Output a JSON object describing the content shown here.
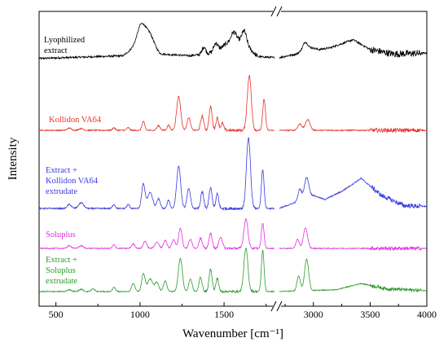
{
  "chart_data": {
    "type": "line",
    "title": "",
    "xlabel": "Wavenumber [cm⁻¹]",
    "ylabel": "Intensity",
    "xlim_segments": [
      [
        400,
        1800
      ],
      [
        2700,
        4000
      ]
    ],
    "axis_break": true,
    "x_ticks": [
      {
        "value": 500,
        "label": "500"
      },
      {
        "value": 1000,
        "label": "1000"
      },
      {
        "value": 1500,
        "label": "1500"
      },
      {
        "value": 3000,
        "label": "3000"
      },
      {
        "value": 3500,
        "label": "3500"
      },
      {
        "value": 4000,
        "label": "4000"
      }
    ],
    "y_ticks_shown": false,
    "legend": "none",
    "series": [
      {
        "label_lines": [
          "Lyophilized",
          "extract"
        ],
        "color": "#000000",
        "noise": 0.6,
        "baseline": [
          [
            400,
            0.2
          ],
          [
            900,
            0.5
          ],
          [
            1000,
            2.0
          ],
          [
            1060,
            1.6
          ],
          [
            1120,
            0.7
          ],
          [
            1300,
            0.5
          ],
          [
            1450,
            0.9
          ],
          [
            1550,
            2.4
          ],
          [
            1620,
            1.9
          ],
          [
            1700,
            0.4
          ],
          [
            1800,
            0.3
          ],
          [
            2700,
            0.3
          ],
          [
            2850,
            0.7
          ],
          [
            2950,
            1.5
          ],
          [
            3050,
            1.2
          ],
          [
            3150,
            1.4
          ],
          [
            3350,
            2.3
          ],
          [
            3500,
            1.2
          ],
          [
            3700,
            0.7
          ],
          [
            4000,
            0.8
          ]
        ],
        "peaks": [
          [
            1010,
            2.0,
            25
          ],
          [
            1060,
            1.2,
            25
          ],
          [
            1380,
            0.8,
            10
          ],
          [
            1450,
            1.0,
            12
          ],
          [
            1560,
            0.8,
            15
          ],
          [
            1620,
            1.4,
            14
          ],
          [
            2925,
            0.7,
            18
          ]
        ]
      },
      {
        "label_lines": [
          "Kollidon VA64"
        ],
        "color": "#e8302a",
        "noise": 0.35,
        "baseline": [
          [
            400,
            0.0
          ],
          [
            1800,
            0.0
          ],
          [
            2700,
            0.0
          ],
          [
            4000,
            0.0
          ]
        ],
        "peaks": [
          [
            580,
            0.25,
            12
          ],
          [
            650,
            0.2,
            12
          ],
          [
            845,
            0.3,
            8
          ],
          [
            930,
            0.3,
            8
          ],
          [
            1020,
            1.0,
            8
          ],
          [
            1110,
            0.5,
            10
          ],
          [
            1170,
            0.6,
            8
          ],
          [
            1230,
            3.8,
            12
          ],
          [
            1290,
            1.4,
            10
          ],
          [
            1370,
            1.6,
            9
          ],
          [
            1420,
            2.6,
            9
          ],
          [
            1460,
            1.4,
            8
          ],
          [
            1490,
            0.8,
            8
          ],
          [
            1650,
            6.1,
            12
          ],
          [
            1738,
            3.5,
            8
          ],
          [
            2880,
            0.7,
            18
          ],
          [
            2950,
            1.2,
            20
          ]
        ]
      },
      {
        "label_lines": [
          "Extract +",
          "Kollidon VA64",
          "extrudate"
        ],
        "color": "#3a3ae0",
        "noise": 0.45,
        "baseline": [
          [
            400,
            0.0
          ],
          [
            1800,
            0.0
          ],
          [
            2700,
            0.0
          ],
          [
            3000,
            1.6
          ],
          [
            3100,
            1.1
          ],
          [
            3250,
            2.1
          ],
          [
            3420,
            3.7
          ],
          [
            3600,
            1.6
          ],
          [
            3800,
            0.35
          ],
          [
            4000,
            0.25
          ]
        ],
        "peaks": [
          [
            580,
            0.5,
            12
          ],
          [
            650,
            0.7,
            15
          ],
          [
            845,
            0.5,
            8
          ],
          [
            930,
            0.5,
            8
          ],
          [
            1020,
            3.0,
            10
          ],
          [
            1060,
            2.0,
            15
          ],
          [
            1110,
            1.2,
            10
          ],
          [
            1170,
            1.0,
            8
          ],
          [
            1230,
            5.2,
            12
          ],
          [
            1290,
            2.5,
            10
          ],
          [
            1370,
            2.0,
            9
          ],
          [
            1420,
            2.5,
            9
          ],
          [
            1460,
            1.8,
            8
          ],
          [
            1645,
            8.6,
            12
          ],
          [
            1730,
            4.8,
            8
          ],
          [
            2880,
            1.4,
            15
          ],
          [
            2940,
            2.5,
            20
          ]
        ]
      },
      {
        "label_lines": [
          "Soluplus"
        ],
        "color": "#e030e0",
        "noise": 0.3,
        "baseline": [
          [
            400,
            0.0
          ],
          [
            1800,
            0.0
          ],
          [
            2700,
            0.0
          ],
          [
            4000,
            0.0
          ]
        ],
        "peaks": [
          [
            580,
            0.3,
            12
          ],
          [
            650,
            0.3,
            12
          ],
          [
            845,
            0.4,
            8
          ],
          [
            960,
            0.5,
            10
          ],
          [
            1030,
            0.8,
            10
          ],
          [
            1100,
            0.7,
            12
          ],
          [
            1150,
            0.9,
            10
          ],
          [
            1200,
            1.0,
            10
          ],
          [
            1240,
            2.3,
            10
          ],
          [
            1300,
            1.0,
            10
          ],
          [
            1360,
            1.2,
            9
          ],
          [
            1420,
            1.7,
            9
          ],
          [
            1480,
            1.3,
            10
          ],
          [
            1630,
            3.3,
            12
          ],
          [
            1730,
            2.8,
            8
          ],
          [
            2860,
            1.0,
            15
          ],
          [
            2930,
            2.3,
            18
          ]
        ]
      },
      {
        "label_lines": [
          "Extract +",
          "Soluplus",
          "extrudate"
        ],
        "color": "#2e9a2e",
        "noise": 0.3,
        "baseline": [
          [
            400,
            0.0
          ],
          [
            1800,
            0.0
          ],
          [
            2700,
            0.0
          ],
          [
            3200,
            0.2
          ],
          [
            3420,
            0.9
          ],
          [
            3650,
            0.3
          ],
          [
            4000,
            0.1
          ]
        ],
        "peaks": [
          [
            580,
            0.2,
            12
          ],
          [
            650,
            0.25,
            12
          ],
          [
            720,
            0.3,
            10
          ],
          [
            845,
            0.5,
            8
          ],
          [
            960,
            0.9,
            10
          ],
          [
            1020,
            2.0,
            10
          ],
          [
            1060,
            1.4,
            15
          ],
          [
            1100,
            1.0,
            12
          ],
          [
            1150,
            1.2,
            10
          ],
          [
            1240,
            3.7,
            12
          ],
          [
            1300,
            1.4,
            10
          ],
          [
            1360,
            1.6,
            9
          ],
          [
            1420,
            2.5,
            9
          ],
          [
            1460,
            1.5,
            8
          ],
          [
            1630,
            4.8,
            12
          ],
          [
            1730,
            4.6,
            8
          ],
          [
            2870,
            1.7,
            15
          ],
          [
            2940,
            3.5,
            18
          ]
        ]
      }
    ]
  }
}
